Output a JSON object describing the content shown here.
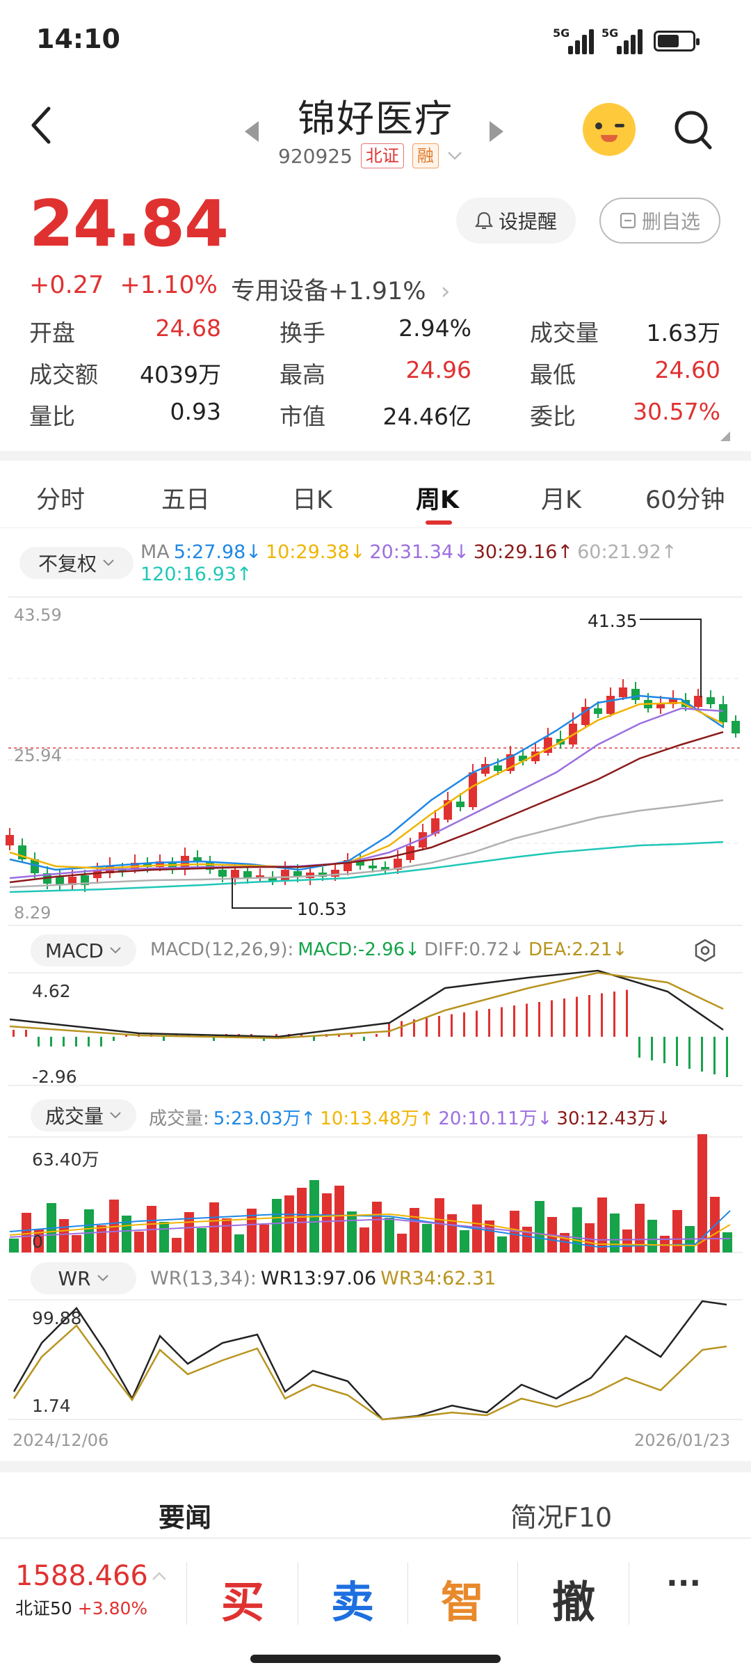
{
  "status_bar": {
    "time": "14:10",
    "network1": "5G",
    "network2": "5G"
  },
  "header": {
    "name": "锦好医疗",
    "code": "920925",
    "exchange_tag": "北证",
    "margin_tag": "融"
  },
  "quote": {
    "price": "24.84",
    "change": "+0.27",
    "change_pct": "+1.10%",
    "sector": "专用设备",
    "sector_pct": "+1.91%",
    "alert_btn": "设提醒",
    "remove_btn": "删自选"
  },
  "stats": [
    [
      {
        "label": "开盘",
        "value": "24.68",
        "color": "red"
      },
      {
        "label": "换手",
        "value": "2.94%",
        "color": "dark"
      },
      {
        "label": "成交量",
        "value": "1.63万",
        "color": "dark"
      }
    ],
    [
      {
        "label": "成交额",
        "value": "4039万",
        "color": "dark"
      },
      {
        "label": "最高",
        "value": "24.96",
        "color": "red"
      },
      {
        "label": "最低",
        "value": "24.60",
        "color": "red"
      }
    ],
    [
      {
        "label": "量比",
        "value": "0.93",
        "color": "dark"
      },
      {
        "label": "市值",
        "value": "24.46亿",
        "color": "dark"
      },
      {
        "label": "委比",
        "value": "30.57%",
        "color": "red"
      }
    ]
  ],
  "tabs": [
    "分时",
    "五日",
    "日K",
    "周K",
    "月K",
    "60分钟"
  ],
  "active_tab": 3,
  "ma_legend": {
    "adj": "不复权",
    "prefix": "MA",
    "ma5": "5:27.98↓",
    "ma10": "10:29.38↓",
    "ma20": "20:31.34↓",
    "ma30": "30:29.16↑",
    "ma60": "60:21.92↑",
    "ma120": "120:16.93↑"
  },
  "kline": {
    "high_axis": "43.59",
    "low_axis": "8.29",
    "mid_axis": "25.94",
    "max_label": "41.35",
    "min_label": "10.53"
  },
  "macd": {
    "sel": "MACD",
    "params": "MACD(12,26,9):",
    "macd": "MACD:-2.96↓",
    "diff": "DIFF:0.72↓",
    "dea": "DEA:2.21↓",
    "top": "4.62",
    "bottom": "-2.96"
  },
  "volume": {
    "sel": "成交量",
    "prefix": "成交量:",
    "v5": "5:23.03万↑",
    "v10": "10:13.48万↑",
    "v20": "20:10.11万↓",
    "v30": "30:12.43万↓",
    "top": "63.40万",
    "zero": "0"
  },
  "wr": {
    "sel": "WR",
    "params": "WR(13,34):",
    "wr13": "WR13:97.06",
    "wr34": "WR34:62.31",
    "top": "99.88",
    "bottom": "1.74"
  },
  "dates": {
    "start": "2024/12/06",
    "end": "2026/01/23"
  },
  "news_tabs": [
    "要闻",
    "简况F10"
  ],
  "bottom": {
    "index_value": "1588.466",
    "index_name": "北证50",
    "index_pct": "+3.80%",
    "buy": "买",
    "sell": "卖",
    "smart": "智",
    "cancel": "撤",
    "more": "···"
  },
  "colors": {
    "up": "#e03131",
    "down": "#16a34a",
    "ma5": "#1e88e5",
    "ma10": "#f0b400",
    "ma20": "#9b6ee0",
    "ma30": "#8b1a1a",
    "ma60": "#b0b0b0",
    "ma120": "#1fc7b8"
  }
}
